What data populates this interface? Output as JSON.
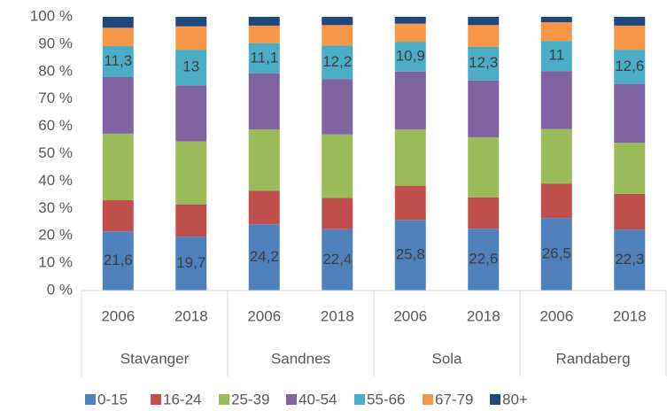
{
  "chart_data": {
    "type": "stacked_bar",
    "categories": [
      "2006",
      "2018",
      "2006",
      "2018",
      "2006",
      "2018",
      "2006",
      "2018"
    ],
    "groups": [
      "Stavanger",
      "Sandnes",
      "Sola",
      "Randaberg"
    ],
    "series": [
      {
        "name": "0-15",
        "color": "#4f81bd",
        "values": [
          21.6,
          19.7,
          24.2,
          22.4,
          25.8,
          22.6,
          26.5,
          22.3
        ],
        "value_labels": [
          "21,6",
          "19,7",
          "24,2",
          "22,4",
          "25,8",
          "22,6",
          "26,5",
          "22,3"
        ]
      },
      {
        "name": "16-24",
        "color": "#c0504d",
        "values": [
          11.4,
          11.8,
          12.3,
          11.4,
          12.5,
          11.4,
          12.5,
          13
        ]
      },
      {
        "name": "25-39",
        "color": "#9bbb59",
        "values": [
          24.3,
          23,
          22.3,
          23.2,
          20.5,
          22,
          20,
          18.7
        ]
      },
      {
        "name": "40-54",
        "color": "#8064a2",
        "values": [
          20.7,
          20.5,
          20.5,
          20.3,
          21.2,
          20.8,
          21.2,
          21.4
        ]
      },
      {
        "name": "55-66",
        "color": "#4bacc6",
        "values": [
          11.3,
          13,
          11.1,
          12.2,
          10.9,
          12.3,
          11,
          12.6
        ],
        "value_labels": [
          "11,3",
          "13",
          "11,1",
          "12,2",
          "10,9",
          "12,3",
          "11",
          "12,6"
        ]
      },
      {
        "name": "67-79",
        "color": "#f79646",
        "values": [
          6.7,
          8.5,
          6.4,
          7.5,
          6.6,
          7.9,
          6.8,
          8.8
        ]
      },
      {
        "name": "80+",
        "color": "#1f497d",
        "values": [
          4,
          3.5,
          3.2,
          3,
          2.5,
          3,
          2,
          3.2
        ]
      }
    ],
    "ylim": [
      0,
      100
    ],
    "yticks": [
      {
        "value": 0,
        "label": "0 %"
      },
      {
        "value": 10,
        "label": "10 %"
      },
      {
        "value": 20,
        "label": "20 %"
      },
      {
        "value": 30,
        "label": "30 %"
      },
      {
        "value": 40,
        "label": "40 %"
      },
      {
        "value": 50,
        "label": "50 %"
      },
      {
        "value": 60,
        "label": "60 %"
      },
      {
        "value": 70,
        "label": "70 %"
      },
      {
        "value": 80,
        "label": "80 %"
      },
      {
        "value": 90,
        "label": "90 %"
      },
      {
        "value": 100,
        "label": "100 %"
      }
    ],
    "grid": false,
    "legend": "bottom"
  }
}
